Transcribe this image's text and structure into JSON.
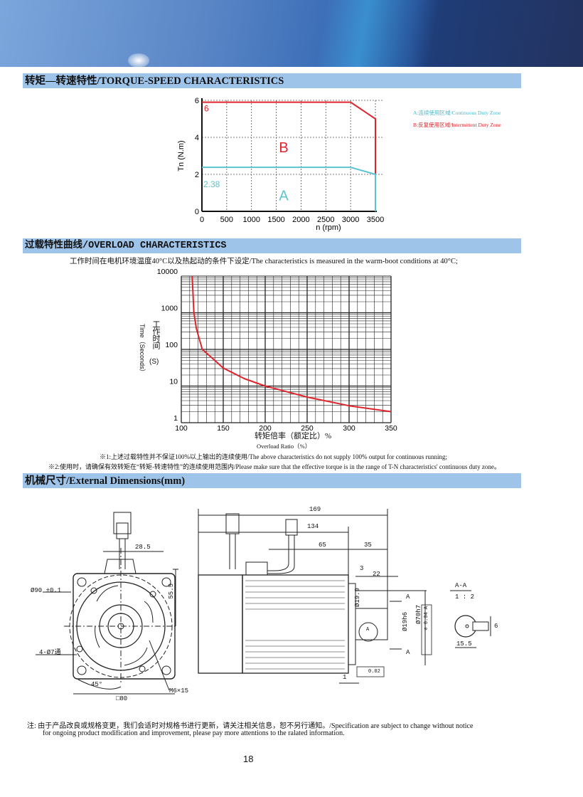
{
  "banner": {
    "colors": [
      "#7ba6dc",
      "#3d6fb8",
      "#23325f"
    ]
  },
  "torque_section": {
    "title": "转矩—转速特性/TORQUE-SPEED CHARACTERISTICS",
    "legend": {
      "a": "A:连续使用区域/Continuous Duty Zone",
      "b": "B:反复使用区域/Intermittent Duty Zone"
    },
    "labels": {
      "peak": "6",
      "rated": "2.38",
      "zone_a": "A",
      "zone_b": "B"
    }
  },
  "overload_section": {
    "title": "过载特性曲线/OVERLOAD CHARACTERISTICS",
    "condition": "工作时间在电机环境温度40°C以及热起动的条件下设定/The characteristics is measured in the warm-boot conditions at 40°C;",
    "ylabel_cn": "工作时间",
    "ylabel_unit": "(S)",
    "ylabel_en": "Time（Seconds）",
    "xlabel_cn": "转矩倍率（额定比）%",
    "xlabel_en": "Overload Ratio（%）",
    "note1": "※1:上述过载特性并不保证100%以上输出的连续使用/The above characteristics do not supply 100% output for continuous running;",
    "note2": "※2:使用时，请确保有效转矩在“转矩-转速特性”的连续使用范围内/Please make sure that the effective torque is in the range of T-N characteristics' continuous duty zone。"
  },
  "dimensions_section": {
    "title": "机械尺寸/External Dimensions(mm)",
    "labels": {
      "d169": "169",
      "d134": "134",
      "d65": "65",
      "d35": "35",
      "d28_5": "28.5",
      "d55_5": "55.5",
      "d90": "Ø90 ±0.1",
      "holes": "4-Ø7通",
      "angle": "45°",
      "square": "□80",
      "thread": "M6×15",
      "d3": "3",
      "d22": "22",
      "d19_9": "Ø19.9",
      "d19h6": "Ø19h6",
      "d70h7": "Ø70h7",
      "tol": "⊘ 0.04 A",
      "d1": "1",
      "runout": "0.02",
      "section_a": "A",
      "datum": "A",
      "section_title": "A-A",
      "scale": "1 : 2",
      "key6": "6",
      "d15_5": "15.5"
    }
  },
  "footer": {
    "note_line1": "注:  由于产品改良或规格变更，我们会适时对规格书进行更新，请关注相关信息，恕不另行通知。/Specification are subject to change without notice",
    "note_line2": "for ongoing product modification and improvement, please pay more attentions to the ralated information.",
    "page_number": "18"
  },
  "chart_data": [
    {
      "type": "line",
      "title": "",
      "xlabel": "n (rpm)",
      "ylabel": "Tn (N.m)",
      "xlim": [
        0,
        3500
      ],
      "ylim": [
        0,
        6
      ],
      "xticks": [
        0,
        500,
        1000,
        1500,
        2000,
        2500,
        3000,
        3500
      ],
      "yticks": [
        0,
        2,
        4,
        6
      ],
      "grid": "dashed",
      "legend": "right",
      "series": [
        {
          "name": "B",
          "color": "#e0242b",
          "x": [
            0,
            3000,
            3500,
            3500
          ],
          "y": [
            5.9,
            5.9,
            5.0,
            2.0
          ]
        },
        {
          "name": "A",
          "color": "#5bc4d0",
          "x": [
            0,
            3000,
            3500,
            3500
          ],
          "y": [
            2.38,
            2.38,
            2.0,
            0
          ]
        }
      ]
    },
    {
      "type": "line",
      "title": "",
      "xlim": [
        100,
        350
      ],
      "ylim": [
        1,
        10000
      ],
      "yscale": "log",
      "xticks": [
        100,
        150,
        200,
        250,
        300,
        350
      ],
      "yticks": [
        1,
        10,
        100,
        1000,
        10000
      ],
      "grid": "on",
      "series": [
        {
          "color": "#e0242b",
          "x": [
            113,
            115,
            118,
            125,
            140,
            150,
            175,
            200,
            250,
            300,
            350
          ],
          "y": [
            10000,
            1000,
            370,
            100,
            50,
            31,
            16,
            10,
            5,
            2.9,
            2.0
          ]
        }
      ]
    }
  ]
}
